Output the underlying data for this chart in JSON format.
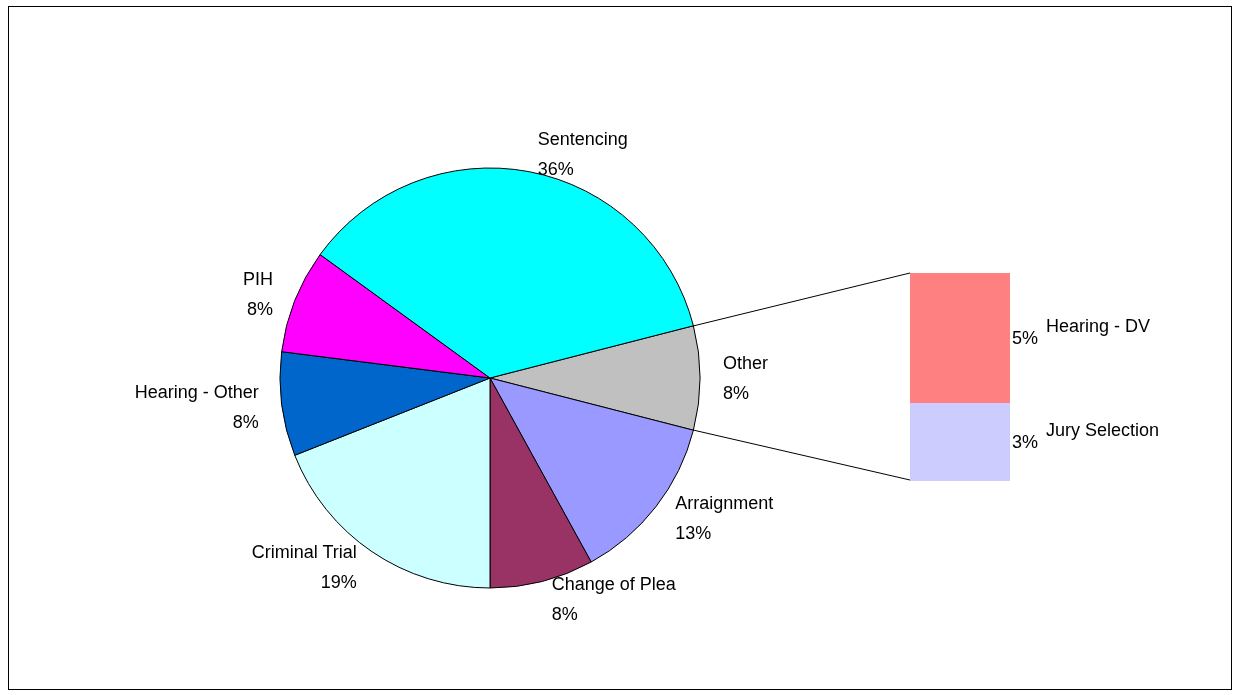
{
  "chart_data": [
    {
      "type": "pie",
      "categories": [
        "Other",
        "Arraignment",
        "Change of Plea",
        "Criminal Trial",
        "Hearing - Other",
        "PIH",
        "Sentencing"
      ],
      "values": [
        8,
        13,
        8,
        19,
        8,
        8,
        36
      ],
      "value_labels": [
        "8%",
        "13%",
        "8%",
        "19%",
        "8%",
        "8%",
        "36%"
      ],
      "colors": [
        "#c0c0c0",
        "#9999ff",
        "#993366",
        "#ccffff",
        "#0066cc",
        "#ff00ff",
        "#00ffff"
      ],
      "legend": false
    },
    {
      "type": "bar",
      "stacked": true,
      "categories": [
        null
      ],
      "series": [
        {
          "name": "Jury Selection",
          "color": "#ccccff",
          "values": [
            3
          ],
          "value_labels": [
            "3%"
          ]
        },
        {
          "name": "Hearing - DV",
          "color": "#ff8080",
          "values": [
            5
          ],
          "value_labels": [
            "5%"
          ]
        }
      ],
      "legend": false
    }
  ]
}
